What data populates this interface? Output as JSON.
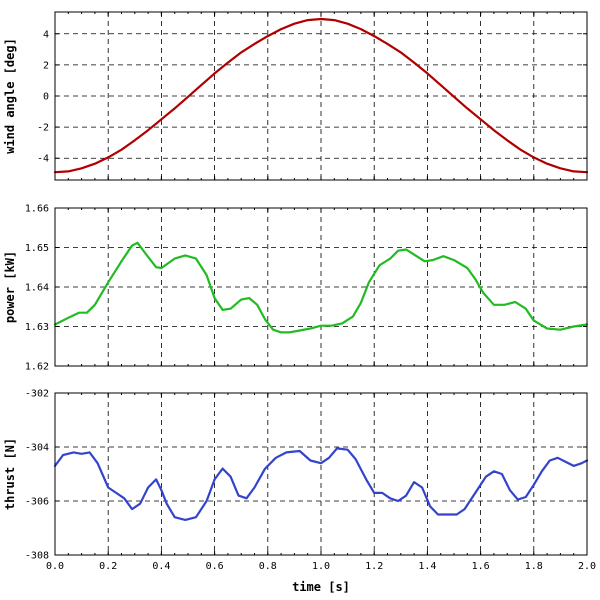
{
  "chart_data": [
    {
      "type": "line",
      "title": "",
      "xlabel": "",
      "ylabel": "wind angle [deg]",
      "xlim": [
        0,
        2
      ],
      "ylim": [
        -5.4,
        5.4
      ],
      "xticks": [
        0.0,
        0.2,
        0.4,
        0.6,
        0.8,
        1.0,
        1.2,
        1.4,
        1.6,
        1.8,
        2.0
      ],
      "yticks": [
        -4,
        -2,
        0,
        2,
        4
      ],
      "ytick_labels": [
        "-4",
        "-2",
        "0",
        "2",
        "4"
      ],
      "grid": true,
      "series": [
        {
          "color": "#b00000",
          "x": [
            0,
            0.05,
            0.1,
            0.15,
            0.2,
            0.25,
            0.3,
            0.35,
            0.4,
            0.45,
            0.5,
            0.55,
            0.6,
            0.65,
            0.7,
            0.75,
            0.8,
            0.85,
            0.9,
            0.95,
            1.0,
            1.05,
            1.1,
            1.15,
            1.2,
            1.25,
            1.3,
            1.35,
            1.4,
            1.45,
            1.5,
            1.55,
            1.6,
            1.65,
            1.7,
            1.75,
            1.8,
            1.85,
            1.9,
            1.95,
            2.0
          ],
          "y": [
            -4.9,
            -4.85,
            -4.65,
            -4.35,
            -3.95,
            -3.45,
            -2.85,
            -2.2,
            -1.5,
            -0.8,
            -0.05,
            0.7,
            1.45,
            2.15,
            2.8,
            3.35,
            3.85,
            4.3,
            4.65,
            4.88,
            4.95,
            4.88,
            4.65,
            4.3,
            3.85,
            3.35,
            2.8,
            2.15,
            1.45,
            0.7,
            -0.05,
            -0.8,
            -1.5,
            -2.2,
            -2.85,
            -3.45,
            -3.95,
            -4.35,
            -4.65,
            -4.85,
            -4.9
          ]
        }
      ]
    },
    {
      "type": "line",
      "title": "",
      "xlabel": "",
      "ylabel": "power [kW]",
      "xlim": [
        0,
        2
      ],
      "ylim": [
        1.62,
        1.66
      ],
      "xticks": [
        0.0,
        0.2,
        0.4,
        0.6,
        0.8,
        1.0,
        1.2,
        1.4,
        1.6,
        1.8,
        2.0
      ],
      "yticks": [
        1.62,
        1.63,
        1.64,
        1.65,
        1.66
      ],
      "ytick_labels": [
        "1.62",
        "1.63",
        "1.64",
        "1.65",
        "1.66"
      ],
      "grid": true,
      "series": [
        {
          "color": "#22bb22",
          "x": [
            0,
            0.05,
            0.09,
            0.12,
            0.15,
            0.2,
            0.25,
            0.29,
            0.31,
            0.34,
            0.38,
            0.4,
            0.45,
            0.49,
            0.53,
            0.57,
            0.6,
            0.63,
            0.66,
            0.7,
            0.73,
            0.76,
            0.79,
            0.82,
            0.85,
            0.88,
            0.92,
            0.96,
            1.0,
            1.04,
            1.08,
            1.12,
            1.15,
            1.18,
            1.22,
            1.26,
            1.29,
            1.32,
            1.35,
            1.39,
            1.42,
            1.46,
            1.5,
            1.55,
            1.58,
            1.61,
            1.65,
            1.69,
            1.73,
            1.77,
            1.8,
            1.85,
            1.9,
            1.95,
            2.0
          ],
          "y": [
            1.6305,
            1.6322,
            1.6335,
            1.6335,
            1.6355,
            1.6412,
            1.6465,
            1.6505,
            1.6512,
            1.6485,
            1.645,
            1.6448,
            1.6472,
            1.648,
            1.6472,
            1.643,
            1.6372,
            1.6342,
            1.6345,
            1.6368,
            1.6372,
            1.6355,
            1.6318,
            1.6292,
            1.6285,
            1.6285,
            1.629,
            1.6295,
            1.6302,
            1.6302,
            1.6308,
            1.6325,
            1.636,
            1.6412,
            1.6455,
            1.6472,
            1.6492,
            1.6495,
            1.6482,
            1.6465,
            1.6468,
            1.6478,
            1.6468,
            1.6448,
            1.642,
            1.6385,
            1.6355,
            1.6355,
            1.6362,
            1.6345,
            1.6315,
            1.6295,
            1.6292,
            1.63,
            1.6305
          ]
        }
      ]
    },
    {
      "type": "line",
      "title": "",
      "xlabel": "time [s]",
      "ylabel": "thrust [N]",
      "xlim": [
        0,
        2
      ],
      "ylim": [
        -308,
        -302
      ],
      "xticks": [
        0.0,
        0.2,
        0.4,
        0.6,
        0.8,
        1.0,
        1.2,
        1.4,
        1.6,
        1.8,
        2.0
      ],
      "xtick_labels": [
        "0.0",
        "0.2",
        "0.4",
        "0.6",
        "0.8",
        "1.0",
        "1.2",
        "1.4",
        "1.6",
        "1.8",
        "2.0"
      ],
      "yticks": [
        -308,
        -306,
        -304,
        -302
      ],
      "ytick_labels": [
        "-308",
        "-306",
        "-304",
        "-302"
      ],
      "grid": true,
      "series": [
        {
          "color": "#3344cc",
          "x": [
            0,
            0.03,
            0.07,
            0.1,
            0.13,
            0.16,
            0.2,
            0.23,
            0.26,
            0.29,
            0.32,
            0.35,
            0.38,
            0.4,
            0.42,
            0.45,
            0.49,
            0.53,
            0.57,
            0.6,
            0.63,
            0.66,
            0.69,
            0.72,
            0.75,
            0.79,
            0.83,
            0.87,
            0.92,
            0.96,
            1.0,
            1.03,
            1.06,
            1.1,
            1.13,
            1.17,
            1.2,
            1.23,
            1.26,
            1.29,
            1.32,
            1.35,
            1.38,
            1.41,
            1.44,
            1.47,
            1.51,
            1.54,
            1.58,
            1.62,
            1.65,
            1.68,
            1.71,
            1.74,
            1.77,
            1.8,
            1.83,
            1.86,
            1.89,
            1.92,
            1.95,
            1.98,
            2.0
          ],
          "y": [
            -304.7,
            -304.3,
            -304.2,
            -304.25,
            -304.2,
            -304.6,
            -305.5,
            -305.7,
            -305.9,
            -306.3,
            -306.1,
            -305.5,
            -305.2,
            -305.6,
            -306.1,
            -306.6,
            -306.7,
            -306.6,
            -306.0,
            -305.2,
            -304.8,
            -305.1,
            -305.8,
            -305.9,
            -305.5,
            -304.8,
            -304.4,
            -304.2,
            -304.15,
            -304.5,
            -304.6,
            -304.4,
            -304.05,
            -304.1,
            -304.45,
            -305.2,
            -305.7,
            -305.7,
            -305.9,
            -306.0,
            -305.8,
            -305.3,
            -305.5,
            -306.2,
            -306.5,
            -306.5,
            -306.5,
            -306.3,
            -305.7,
            -305.1,
            -304.9,
            -305.0,
            -305.6,
            -305.95,
            -305.85,
            -305.4,
            -304.9,
            -304.5,
            -304.4,
            -304.55,
            -304.7,
            -304.6,
            -304.5
          ]
        }
      ]
    }
  ]
}
